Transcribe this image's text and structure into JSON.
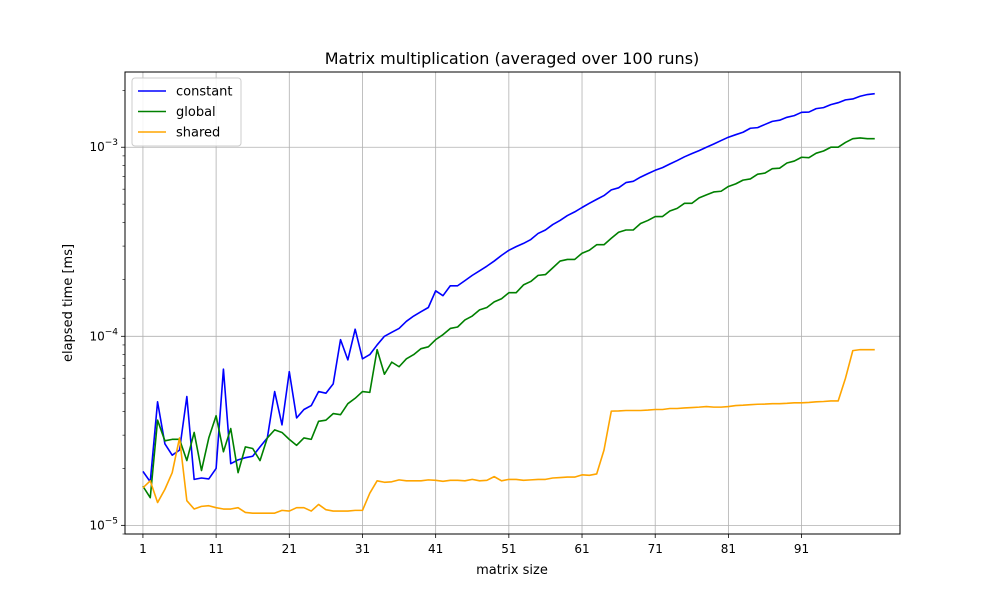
{
  "chart_data": {
    "type": "line",
    "title": "Matrix multiplication (averaged over 100 runs)",
    "xlabel": "matrix size",
    "ylabel": "elapsed time [ms]",
    "xlim": [
      -1.45,
      104.45
    ],
    "ylim": [
      9e-06,
      0.0025
    ],
    "yscale": "log",
    "grid": true,
    "legend_position": "top-left",
    "x_ticks": [
      1,
      11,
      21,
      31,
      41,
      51,
      61,
      71,
      81,
      91
    ],
    "y_ticks": [
      {
        "value": 1e-05,
        "base": "10",
        "exp": "−5"
      },
      {
        "value": 0.0001,
        "base": "10",
        "exp": "−4"
      },
      {
        "value": 0.001,
        "base": "10",
        "exp": "−3"
      }
    ],
    "x": [
      1,
      2,
      3,
      4,
      5,
      6,
      7,
      8,
      9,
      10,
      11,
      12,
      13,
      14,
      15,
      16,
      17,
      18,
      19,
      20,
      21,
      22,
      23,
      24,
      25,
      26,
      27,
      28,
      29,
      30,
      31,
      32,
      33,
      34,
      35,
      36,
      37,
      38,
      39,
      40,
      41,
      42,
      43,
      44,
      45,
      46,
      47,
      48,
      49,
      50,
      51,
      52,
      53,
      54,
      55,
      56,
      57,
      58,
      59,
      60,
      61,
      62,
      63,
      64,
      65,
      66,
      67,
      68,
      69,
      70,
      71,
      72,
      73,
      74,
      75,
      76,
      77,
      78,
      79,
      80,
      81,
      82,
      83,
      84,
      85,
      86,
      87,
      88,
      89,
      90,
      91,
      92,
      93,
      94,
      95,
      96,
      97,
      98,
      99,
      100,
      101
    ],
    "series": [
      {
        "name": "constant",
        "color": "#0000ff",
        "values": [
          1.93e-05,
          1.7e-05,
          4.5e-05,
          2.7e-05,
          2.35e-05,
          2.5e-05,
          4.8e-05,
          1.75e-05,
          1.78e-05,
          1.76e-05,
          2e-05,
          6.7e-05,
          2.12e-05,
          2.22e-05,
          2.28e-05,
          2.32e-05,
          2.6e-05,
          2.9e-05,
          5.1e-05,
          3.4e-05,
          6.5e-05,
          3.7e-05,
          4.1e-05,
          4.3e-05,
          5.1e-05,
          5e-05,
          5.6e-05,
          9.6e-05,
          7.5e-05,
          0.000109,
          7.6e-05,
          8e-05,
          9e-05,
          0.0001,
          0.000105,
          0.00011,
          0.00012,
          0.000128,
          0.000135,
          0.000142,
          0.000174,
          0.000164,
          0.000185,
          0.000185,
          0.000197,
          0.00021,
          0.000222,
          0.000235,
          0.00025,
          0.000268,
          0.000285,
          0.000298,
          0.00031,
          0.000325,
          0.00035,
          0.000365,
          0.00039,
          0.00041,
          0.000435,
          0.000455,
          0.00048,
          0.000505,
          0.00053,
          0.000555,
          0.000595,
          0.00061,
          0.00065,
          0.00066,
          0.000695,
          0.000725,
          0.000755,
          0.00078,
          0.000815,
          0.00085,
          0.00089,
          0.000925,
          0.00096,
          0.001,
          0.00104,
          0.001085,
          0.00113,
          0.001165,
          0.0012,
          0.00126,
          0.00127,
          0.00132,
          0.00137,
          0.00139,
          0.00144,
          0.00147,
          0.00153,
          0.001535,
          0.0016,
          0.00162,
          0.00168,
          0.00172,
          0.00178,
          0.0018,
          0.00186,
          0.0019,
          0.00192
        ]
      },
      {
        "name": "global",
        "color": "#008000",
        "values": [
          1.61e-05,
          1.4e-05,
          3.6e-05,
          2.8e-05,
          2.85e-05,
          2.85e-05,
          2.2e-05,
          3.1e-05,
          1.95e-05,
          2.9e-05,
          3.8e-05,
          2.45e-05,
          3.25e-05,
          1.9e-05,
          2.6e-05,
          2.55e-05,
          2.2e-05,
          2.9e-05,
          3.2e-05,
          3.1e-05,
          2.85e-05,
          2.65e-05,
          2.9e-05,
          2.85e-05,
          3.55e-05,
          3.6e-05,
          3.9e-05,
          3.85e-05,
          4.4e-05,
          4.7e-05,
          5.1e-05,
          5.05e-05,
          8.5e-05,
          6.3e-05,
          7.3e-05,
          6.9e-05,
          7.6e-05,
          8e-05,
          8.6e-05,
          8.8e-05,
          9.6e-05,
          0.000102,
          0.00011,
          0.000112,
          0.000122,
          0.000128,
          0.000138,
          0.000142,
          0.000152,
          0.000158,
          0.00017,
          0.00017,
          0.000187,
          0.000195,
          0.00021,
          0.000212,
          0.00023,
          0.00025,
          0.000255,
          0.000255,
          0.000275,
          0.000285,
          0.000305,
          0.000305,
          0.00033,
          0.000355,
          0.000365,
          0.000365,
          0.000395,
          0.00041,
          0.00043,
          0.00043,
          0.00046,
          0.000475,
          0.000505,
          0.000505,
          0.00054,
          0.00056,
          0.00058,
          0.000585,
          0.00062,
          0.00064,
          0.00067,
          0.00068,
          0.00072,
          0.00073,
          0.00077,
          0.000775,
          0.000825,
          0.000845,
          0.000885,
          0.00088,
          0.00093,
          0.000955,
          0.001,
          0.001,
          0.00106,
          0.00111,
          0.00112,
          0.00111,
          0.00111
        ]
      },
      {
        "name": "shared",
        "color": "#ffa500",
        "values": [
          1.58e-05,
          1.72e-05,
          1.32e-05,
          1.55e-05,
          1.9e-05,
          2.9e-05,
          1.35e-05,
          1.22e-05,
          1.26e-05,
          1.27e-05,
          1.24e-05,
          1.22e-05,
          1.22e-05,
          1.24e-05,
          1.17e-05,
          1.16e-05,
          1.16e-05,
          1.16e-05,
          1.16e-05,
          1.2e-05,
          1.19e-05,
          1.24e-05,
          1.24e-05,
          1.19e-05,
          1.29e-05,
          1.21e-05,
          1.19e-05,
          1.19e-05,
          1.19e-05,
          1.2e-05,
          1.2e-05,
          1.48e-05,
          1.72e-05,
          1.69e-05,
          1.7e-05,
          1.74e-05,
          1.72e-05,
          1.72e-05,
          1.72e-05,
          1.74e-05,
          1.73e-05,
          1.71e-05,
          1.73e-05,
          1.73e-05,
          1.72e-05,
          1.75e-05,
          1.72e-05,
          1.73e-05,
          1.81e-05,
          1.72e-05,
          1.75e-05,
          1.75e-05,
          1.73e-05,
          1.74e-05,
          1.75e-05,
          1.75e-05,
          1.78e-05,
          1.79e-05,
          1.8e-05,
          1.8e-05,
          1.85e-05,
          1.84e-05,
          1.87e-05,
          2.5e-05,
          4.02e-05,
          4.03e-05,
          4.05e-05,
          4.05e-05,
          4.05e-05,
          4.07e-05,
          4.1e-05,
          4.1e-05,
          4.15e-05,
          4.15e-05,
          4.18e-05,
          4.2e-05,
          4.22e-05,
          4.25e-05,
          4.22e-05,
          4.22e-05,
          4.25e-05,
          4.3e-05,
          4.32e-05,
          4.35e-05,
          4.37e-05,
          4.38e-05,
          4.4e-05,
          4.4e-05,
          4.42e-05,
          4.45e-05,
          4.45e-05,
          4.47e-05,
          4.5e-05,
          4.52e-05,
          4.55e-05,
          4.55e-05,
          6e-05,
          8.4e-05,
          8.5e-05,
          8.5e-05,
          8.5e-05
        ]
      }
    ]
  }
}
